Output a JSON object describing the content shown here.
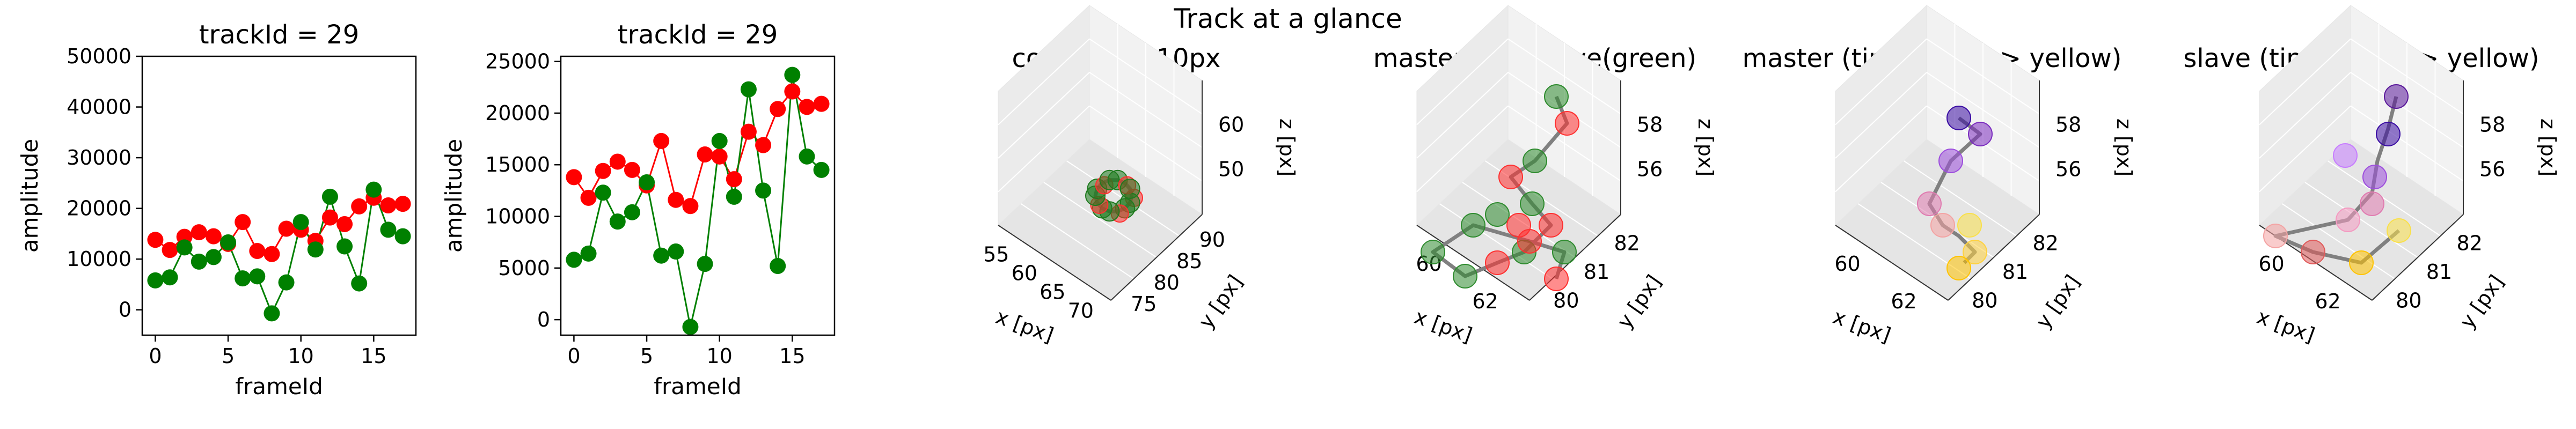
{
  "suptitle": "Track at a glance",
  "colors": {
    "master": "#ff0000",
    "slave": "#008000",
    "line3d": "#808080"
  },
  "chart_data": [
    {
      "type": "scatter",
      "title": "trackId = 29",
      "xlabel": "frameId",
      "ylabel": "amplitude",
      "xlim": [
        -0.9,
        17.9
      ],
      "ylim": [
        -5000,
        50000
      ],
      "xticks": [
        "0",
        "5",
        "10",
        "15"
      ],
      "yticks": [
        "0",
        "10000",
        "20000",
        "30000",
        "40000",
        "50000"
      ],
      "ytick_values": [
        0,
        10000,
        20000,
        30000,
        40000,
        50000
      ],
      "xtick_values": [
        0,
        5,
        10,
        15
      ],
      "x": [
        0,
        1,
        2,
        3,
        4,
        5,
        6,
        7,
        8,
        9,
        10,
        11,
        12,
        13,
        14,
        15,
        16,
        17
      ],
      "series": [
        {
          "color": "#ff0000",
          "values": [
            13800,
            11800,
            14400,
            15300,
            14500,
            13000,
            17300,
            11600,
            11000,
            16000,
            15800,
            13600,
            18200,
            16900,
            20400,
            22100,
            20600,
            20900
          ]
        },
        {
          "color": "#008000",
          "values": [
            5800,
            6400,
            12300,
            9500,
            10400,
            13300,
            6200,
            6600,
            -700,
            5400,
            17300,
            11900,
            22300,
            12500,
            5200,
            23700,
            15800,
            14500
          ]
        }
      ]
    },
    {
      "type": "scatter",
      "title": "trackId = 29",
      "xlabel": "frameId",
      "ylabel": "amplitude",
      "xlim": [
        -0.9,
        17.9
      ],
      "ylim": [
        -1500,
        25500
      ],
      "xticks": [
        "0",
        "5",
        "10",
        "15"
      ],
      "yticks": [
        "0",
        "5000",
        "10000",
        "15000",
        "20000",
        "25000"
      ],
      "ytick_values": [
        0,
        5000,
        10000,
        15000,
        20000,
        25000
      ],
      "xtick_values": [
        0,
        5,
        10,
        15
      ],
      "x": [
        0,
        1,
        2,
        3,
        4,
        5,
        6,
        7,
        8,
        9,
        10,
        11,
        12,
        13,
        14,
        15,
        16,
        17
      ],
      "series": [
        {
          "color": "#ff0000",
          "values": [
            13800,
            11800,
            14400,
            15300,
            14500,
            13000,
            17300,
            11600,
            11000,
            16000,
            15800,
            13600,
            18200,
            16900,
            20400,
            22100,
            20600,
            20900
          ]
        },
        {
          "color": "#008000",
          "values": [
            5800,
            6400,
            12300,
            9500,
            10400,
            13300,
            6200,
            6600,
            -700,
            5400,
            17300,
            11900,
            22300,
            12500,
            5200,
            23700,
            15800,
            14500
          ]
        }
      ]
    },
    {
      "type": "scatter3d",
      "title": "context +- 10px",
      "xlabel": "x [px]",
      "ylabel": "y [px]",
      "zlabel": "z [px]",
      "xticks": [
        "55",
        "60",
        "65",
        "70"
      ],
      "yticks": [
        "75",
        "80",
        "85",
        "90"
      ],
      "zticks": [
        "50",
        "60"
      ]
    },
    {
      "type": "scatter3d",
      "title": "master(red) slave(green)",
      "xlabel": "x [px]",
      "ylabel": "y [px]",
      "zlabel": "z [px]",
      "xticks": [
        "60",
        "62"
      ],
      "yticks": [
        "80",
        "81",
        "82"
      ],
      "zticks": [
        "56",
        "58"
      ]
    },
    {
      "type": "scatter3d",
      "title": "master (time: blue -> yellow)",
      "xlabel": "x [px]",
      "ylabel": "y [px]",
      "zlabel": "z [px]",
      "xticks": [
        "60",
        "62"
      ],
      "yticks": [
        "80",
        "81",
        "82"
      ],
      "zticks": [
        "56",
        "58"
      ]
    },
    {
      "type": "scatter3d",
      "title": "slave (time: blue -> yellow)",
      "xlabel": "x [px]",
      "ylabel": "y [px]",
      "zlabel": "z [px]",
      "xticks": [
        "60",
        "62"
      ],
      "yticks": [
        "80",
        "81",
        "82"
      ],
      "zticks": [
        "56",
        "58"
      ]
    }
  ]
}
